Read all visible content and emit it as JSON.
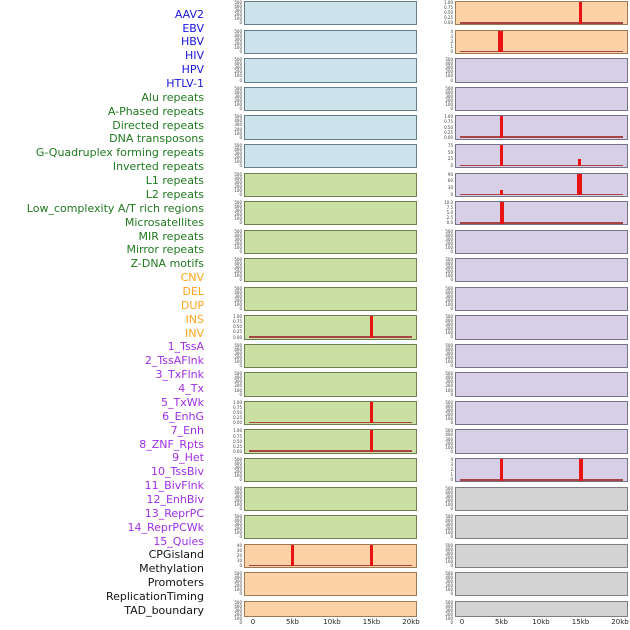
{
  "figure": {
    "x_ticks": [
      "0",
      "5kb",
      "10kb",
      "15kb",
      "20kb"
    ],
    "x_range_kb": [
      0,
      20
    ]
  },
  "colors": {
    "label": {
      "virus": "#1a16d9",
      "repeat": "#207a20",
      "sv": "#ffa41c",
      "chromatin": "#a02fe6",
      "other": "#141414"
    },
    "fill": {
      "virus": "#cde3ec",
      "repeat": "#c9e0a2",
      "sv": "#fdd1a6",
      "chromatin": "#d7cfe6",
      "other": "#d3d3d3"
    },
    "spike": "#ea1313",
    "baseline": "#a84444"
  },
  "chart_data": {
    "type": "line",
    "title": "",
    "xlabel": "genomic position",
    "x_ticks": [
      "0",
      "5kb",
      "10kb",
      "15kb",
      "20kb"
    ],
    "x_range_kb": [
      0,
      20
    ],
    "grid": false,
    "legend": "none",
    "columns": [
      {
        "tracks": [
          {
            "name": "AAV2",
            "category": "virus",
            "yticks": [
              "500",
              "400",
              "300",
              "200",
              "100",
              "0"
            ],
            "baseline": false,
            "spikes": []
          },
          {
            "name": "EBV",
            "category": "virus",
            "yticks": [
              "500",
              "400",
              "300",
              "200",
              "100",
              "0"
            ],
            "baseline": false,
            "spikes": []
          },
          {
            "name": "HBV",
            "category": "virus",
            "yticks": [
              "500",
              "400",
              "300",
              "200",
              "100",
              "0"
            ],
            "baseline": false,
            "spikes": []
          },
          {
            "name": "HIV",
            "category": "virus",
            "yticks": [
              "500",
              "400",
              "300",
              "200",
              "100",
              "0"
            ],
            "baseline": false,
            "spikes": []
          },
          {
            "name": "HPV",
            "category": "virus",
            "yticks": [
              "500",
              "400",
              "300",
              "200",
              "100",
              "0"
            ],
            "baseline": false,
            "spikes": []
          },
          {
            "name": "HTLV-1",
            "category": "virus",
            "yticks": [
              "500",
              "400",
              "300",
              "200",
              "100",
              "0"
            ],
            "baseline": false,
            "spikes": []
          },
          {
            "name": "Alu repeats",
            "category": "repeat",
            "yticks": [
              "500",
              "400",
              "300",
              "200",
              "100",
              "0"
            ],
            "baseline": false,
            "spikes": []
          },
          {
            "name": "A-Phased repeats",
            "category": "repeat",
            "yticks": [
              "500",
              "400",
              "300",
              "200",
              "100",
              "0"
            ],
            "baseline": false,
            "spikes": []
          },
          {
            "name": "Directed repeats",
            "category": "repeat",
            "yticks": [
              "500",
              "400",
              "300",
              "200",
              "100",
              "0"
            ],
            "baseline": false,
            "spikes": []
          },
          {
            "name": "DNA transposons",
            "category": "repeat",
            "yticks": [
              "500",
              "400",
              "300",
              "200",
              "100",
              "0"
            ],
            "baseline": false,
            "spikes": []
          },
          {
            "name": "G-Quadruplex forming repeats",
            "category": "repeat",
            "yticks": [
              "500",
              "400",
              "300",
              "200",
              "100",
              "0"
            ],
            "baseline": false,
            "spikes": []
          },
          {
            "name": "Inverted repeats",
            "category": "repeat",
            "yticks": [
              "1.00",
              "0.75",
              "0.50",
              "0.25",
              "0.00"
            ],
            "ymax": 1.0,
            "baseline": true,
            "spikes": [
              {
                "x_kb": 15,
                "value": 1.0,
                "frac": 1.0,
                "w": 3
              }
            ]
          },
          {
            "name": "L1 repeats",
            "category": "repeat",
            "yticks": [
              "500",
              "400",
              "300",
              "200",
              "100",
              "0"
            ],
            "baseline": false,
            "spikes": []
          },
          {
            "name": "L2 repeats",
            "category": "repeat",
            "yticks": [
              "500",
              "400",
              "300",
              "200",
              "100",
              "0"
            ],
            "baseline": false,
            "spikes": []
          },
          {
            "name": "Low_complexity A/T rich regions",
            "category": "repeat",
            "yticks": [
              "1.00",
              "0.75",
              "0.50",
              "0.25",
              "0.00"
            ],
            "ymax": 1.0,
            "baseline": true,
            "spikes": [
              {
                "x_kb": 15,
                "value": 1.0,
                "frac": 1.0,
                "w": 3
              }
            ]
          },
          {
            "name": "Microsatellites",
            "category": "repeat",
            "yticks": [
              "1.00",
              "0.75",
              "0.50",
              "0.25",
              "0.00"
            ],
            "ymax": 1.0,
            "baseline": true,
            "spikes": [
              {
                "x_kb": 15,
                "value": 1.0,
                "frac": 1.0,
                "w": 3
              }
            ]
          },
          {
            "name": "MIR repeats",
            "category": "repeat",
            "yticks": [
              "500",
              "400",
              "300",
              "200",
              "100",
              "0"
            ],
            "baseline": false,
            "spikes": []
          },
          {
            "name": "Mirror repeats",
            "category": "repeat",
            "yticks": [
              "500",
              "400",
              "300",
              "200",
              "100",
              "0"
            ],
            "baseline": false,
            "spikes": []
          },
          {
            "name": "Z-DNA motifs",
            "category": "repeat",
            "yticks": [
              "500",
              "400",
              "300",
              "200",
              "100",
              "0"
            ],
            "baseline": false,
            "spikes": []
          },
          {
            "name": "CNV",
            "category": "sv",
            "yticks": [
              "40",
              "30",
              "20",
              "10",
              "0"
            ],
            "ymax": 40,
            "baseline": true,
            "spikes": [
              {
                "x_kb": 5,
                "value": 40,
                "frac": 1.0,
                "w": 3.5
              },
              {
                "x_kb": 15,
                "value": 40,
                "frac": 1.0,
                "w": 3.5
              }
            ]
          },
          {
            "name": "DEL",
            "category": "sv",
            "yticks": [
              "500",
              "400",
              "300",
              "200",
              "100",
              "0"
            ],
            "baseline": false,
            "spikes": []
          },
          {
            "name": "DUP",
            "category": "sv",
            "yticks": [
              "500",
              "400",
              "300",
              "200",
              "100",
              "0"
            ],
            "baseline": false,
            "spikes": [],
            "dense": true
          }
        ]
      },
      {
        "tracks": [
          {
            "name": "INS",
            "category": "sv",
            "yticks": [
              "1.00",
              "0.75",
              "0.50",
              "0.25",
              "0.00"
            ],
            "ymax": 1.0,
            "baseline": true,
            "spikes": [
              {
                "x_kb": 15,
                "value": 1.0,
                "frac": 1.0,
                "w": 2.5
              }
            ]
          },
          {
            "name": "INV",
            "category": "sv",
            "yticks": [
              "4",
              "3",
              "2",
              "1",
              "0"
            ],
            "ymax": 4,
            "baseline": true,
            "spikes": [
              {
                "x_kb": 4.9,
                "value": 4,
                "frac": 1.0,
                "w": 5
              }
            ]
          },
          {
            "name": "1_TssA",
            "category": "chromatin",
            "yticks": [
              "500",
              "400",
              "300",
              "200",
              "100",
              "0"
            ],
            "baseline": false,
            "spikes": []
          },
          {
            "name": "2_TssAFlnk",
            "category": "chromatin",
            "yticks": [
              "500",
              "400",
              "300",
              "200",
              "100",
              "0"
            ],
            "baseline": false,
            "spikes": []
          },
          {
            "name": "3_TxFlnk",
            "category": "chromatin",
            "yticks": [
              "1.00",
              "0.75",
              "0.50",
              "0.25",
              "0.00"
            ],
            "ymax": 1.0,
            "baseline": true,
            "spikes": [
              {
                "x_kb": 5,
                "value": 1.0,
                "frac": 1.0,
                "w": 3
              }
            ]
          },
          {
            "name": "4_Tx",
            "category": "chromatin",
            "yticks": [
              "75",
              "50",
              "25",
              "0"
            ],
            "ymax": 80,
            "baseline": true,
            "spikes": [
              {
                "x_kb": 5,
                "value": 80,
                "frac": 1.0,
                "w": 3
              },
              {
                "x_kb": 14.9,
                "value": 25,
                "frac": 0.33,
                "w": 3
              }
            ]
          },
          {
            "name": "5_TxWk",
            "category": "chromatin",
            "yticks": [
              "90",
              "60",
              "30",
              "0"
            ],
            "ymax": 95,
            "baseline": true,
            "spikes": [
              {
                "x_kb": 5,
                "value": 20,
                "frac": 0.22,
                "w": 3
              },
              {
                "x_kb": 14.9,
                "value": 95,
                "frac": 1.0,
                "w": 5
              }
            ]
          },
          {
            "name": "6_EnhG",
            "category": "chromatin",
            "yticks": [
              "10.0",
              "7.5",
              "5.0",
              "2.5",
              "0.0"
            ],
            "ymax": 10,
            "baseline": true,
            "spikes": [
              {
                "x_kb": 5,
                "value": 10,
                "frac": 1.0,
                "w": 4
              }
            ]
          },
          {
            "name": "7_Enh",
            "category": "chromatin",
            "yticks": [
              "500",
              "400",
              "300",
              "200",
              "100",
              "0"
            ],
            "baseline": false,
            "spikes": []
          },
          {
            "name": "8_ZNF_Rpts",
            "category": "chromatin",
            "yticks": [
              "500",
              "400",
              "300",
              "200",
              "100",
              "0"
            ],
            "baseline": false,
            "spikes": []
          },
          {
            "name": "9_Het",
            "category": "chromatin",
            "yticks": [
              "500",
              "400",
              "300",
              "200",
              "100",
              "0"
            ],
            "baseline": false,
            "spikes": []
          },
          {
            "name": "10_TssBiv",
            "category": "chromatin",
            "yticks": [
              "500",
              "400",
              "300",
              "200",
              "100",
              "0"
            ],
            "baseline": false,
            "spikes": []
          },
          {
            "name": "11_BivFlnk",
            "category": "chromatin",
            "yticks": [
              "500",
              "400",
              "300",
              "200",
              "100",
              "0"
            ],
            "baseline": false,
            "spikes": []
          },
          {
            "name": "12_EnhBiv",
            "category": "chromatin",
            "yticks": [
              "500",
              "400",
              "300",
              "200",
              "100",
              "0"
            ],
            "baseline": false,
            "spikes": []
          },
          {
            "name": "13_ReprPC",
            "category": "chromatin",
            "yticks": [
              "500",
              "400",
              "300",
              "200",
              "100",
              "0"
            ],
            "baseline": false,
            "spikes": []
          },
          {
            "name": "14_ReprPCWk",
            "category": "chromatin",
            "yticks": [
              "500",
              "400",
              "300",
              "200",
              "100",
              "0"
            ],
            "baseline": false,
            "spikes": []
          },
          {
            "name": "15_Quies",
            "category": "chromatin",
            "yticks": [
              "4",
              "3",
              "2",
              "1",
              "0"
            ],
            "ymax": 4,
            "baseline": true,
            "spikes": [
              {
                "x_kb": 5,
                "value": 4,
                "frac": 1.0,
                "w": 3
              },
              {
                "x_kb": 15,
                "value": 4,
                "frac": 1.0,
                "w": 4
              }
            ]
          },
          {
            "name": "CPGisland",
            "category": "other",
            "yticks": [
              "500",
              "400",
              "300",
              "200",
              "100",
              "0"
            ],
            "baseline": false,
            "spikes": []
          },
          {
            "name": "Methylation",
            "category": "other",
            "yticks": [
              "500",
              "400",
              "300",
              "200",
              "100",
              "0"
            ],
            "baseline": false,
            "spikes": []
          },
          {
            "name": "Promoters",
            "category": "other",
            "yticks": [
              "500",
              "400",
              "300",
              "200",
              "100",
              "0"
            ],
            "baseline": false,
            "spikes": []
          },
          {
            "name": "ReplicationTiming",
            "category": "other",
            "yticks": [
              "500",
              "400",
              "300",
              "200",
              "100",
              "0"
            ],
            "baseline": false,
            "spikes": []
          },
          {
            "name": "TAD_boundary",
            "category": "other",
            "yticks": [
              "500",
              "400",
              "300",
              "200",
              "100",
              "0"
            ],
            "baseline": false,
            "spikes": [],
            "dense": true
          }
        ]
      }
    ]
  }
}
